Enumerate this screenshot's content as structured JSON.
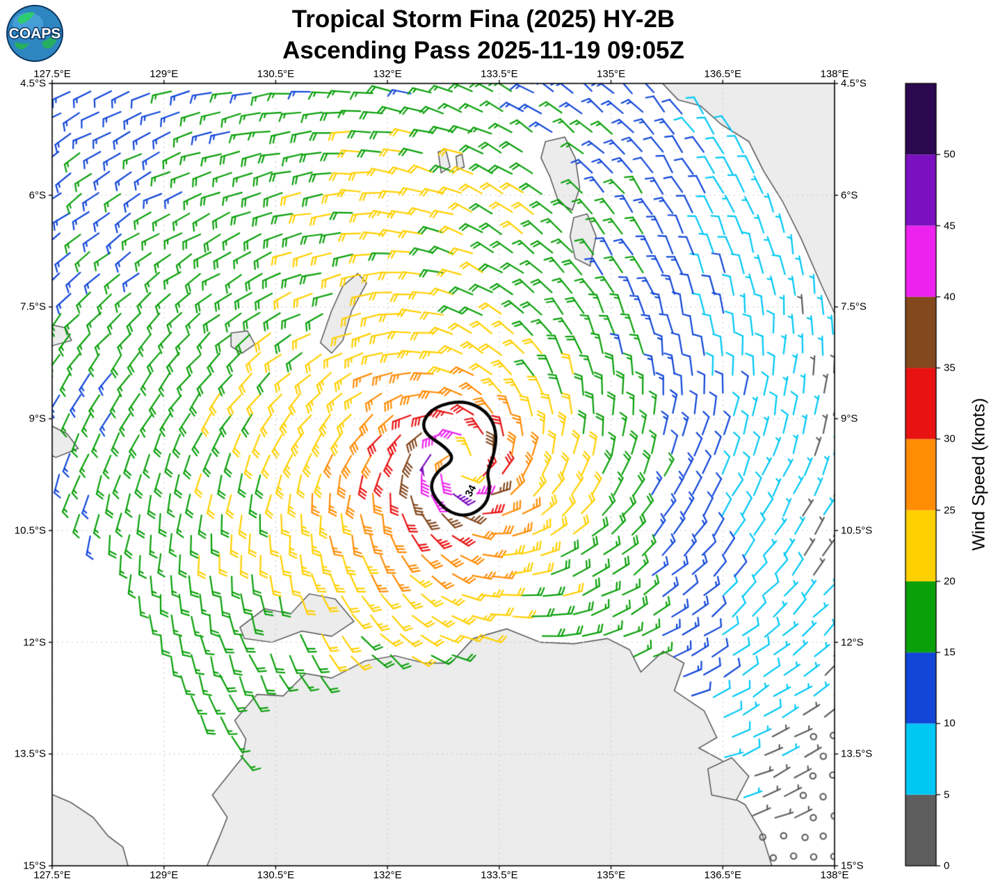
{
  "header": {
    "title_line1": "Tropical Storm Fina (2025) HY-2B",
    "title_line2": "Ascending Pass 2025-11-19 09:05Z",
    "logo_text": "COAPS"
  },
  "chart_data": {
    "type": "wind-barb-map",
    "storm_name": "Fina",
    "storm_year": "2025",
    "satellite": "HY-2B",
    "pass_type": "Ascending",
    "pass_time": "2025-11-19 09:05Z",
    "projection": {
      "lon_min": 127.5,
      "lon_max": 138.0,
      "lat_min": -15.0,
      "lat_max": -4.5
    },
    "x_tick_values": [
      127.5,
      129,
      130.5,
      132,
      133.5,
      135,
      136.5,
      138
    ],
    "x_tick_labels": [
      "127.5°E",
      "129°E",
      "130.5°E",
      "132°E",
      "133.5°E",
      "135°E",
      "136.5°E",
      "138°E"
    ],
    "y_tick_values": [
      -4.5,
      -6,
      -7.5,
      -9,
      -10.5,
      -12,
      -13.5,
      -15
    ],
    "y_tick_labels": [
      "4.5°S",
      "6°S",
      "7.5°S",
      "9°S",
      "10.5°S",
      "12°S",
      "13.5°S",
      "15°S"
    ],
    "colorbar": {
      "label": "Wind Speed (knots)",
      "min": 0,
      "max": 55,
      "tick_values": [
        0,
        5,
        10,
        15,
        20,
        25,
        30,
        35,
        40,
        45,
        50
      ],
      "segments": [
        {
          "from": 0,
          "to": 5,
          "color": "#5e5e5e"
        },
        {
          "from": 5,
          "to": 10,
          "color": "#00c8f5"
        },
        {
          "from": 10,
          "to": 15,
          "color": "#1146d8"
        },
        {
          "from": 15,
          "to": 20,
          "color": "#0aa00a"
        },
        {
          "from": 20,
          "to": 25,
          "color": "#ffd000"
        },
        {
          "from": 25,
          "to": 30,
          "color": "#ff8c05"
        },
        {
          "from": 30,
          "to": 35,
          "color": "#e81212"
        },
        {
          "from": 35,
          "to": 40,
          "color": "#84481e"
        },
        {
          "from": 40,
          "to": 45,
          "color": "#ee22ee"
        },
        {
          "from": 45,
          "to": 50,
          "color": "#7a10c0"
        },
        {
          "from": 50,
          "to": 55,
          "color": "#2c0850"
        }
      ]
    },
    "barb_key": {
      "half_kt": 5,
      "full_kt": 10,
      "pennant_kt": 50,
      "calm_threshold_kt": 2.5
    },
    "wind_field": {
      "storm": {
        "center_lon": 133.0,
        "center_lat": -9.6,
        "max_wind_kt": 44,
        "radius_max_wind_deg": 0.4,
        "decay_exponent": 0.45,
        "inflow_angle_deg": 20,
        "rotation": "clockwise",
        "asymmetry_amp": 0.15,
        "asymmetry_dir_deg": 200
      },
      "north_band": {
        "amp_kt": 6,
        "lat": -5.8,
        "lat_sigma": 1.3,
        "lon": 132.3,
        "lon_sigma": 2.5
      },
      "east_decay": {
        "start_lon": 135.3,
        "rate": 0.22,
        "floor": 0.3
      },
      "se_calm": {
        "lon0": 135.3,
        "lon_w": 2.2,
        "lat0": -12.3,
        "lat_w": 2.4,
        "amp": 0.85
      },
      "grid_spacing_deg": 0.27,
      "swath_left_edge": {
        "lat_start": -9.9,
        "lon0": 127.6,
        "slope": 0.606
      },
      "speed_jitter_kt": 1.6
    },
    "contour_34kt": {
      "label": "34",
      "color": "#000000",
      "label_lon": 133.12,
      "label_lat": -9.97,
      "label_rotation_deg": -62,
      "points": [
        [
          132.63,
          -8.84
        ],
        [
          133.01,
          -8.75
        ],
        [
          133.33,
          -8.89
        ],
        [
          133.47,
          -9.17
        ],
        [
          133.43,
          -9.49
        ],
        [
          133.33,
          -9.73
        ],
        [
          133.38,
          -9.91
        ],
        [
          133.33,
          -10.15
        ],
        [
          133.1,
          -10.31
        ],
        [
          132.85,
          -10.27
        ],
        [
          132.66,
          -10.1
        ],
        [
          132.57,
          -9.91
        ],
        [
          132.66,
          -9.71
        ],
        [
          132.9,
          -9.55
        ],
        [
          132.78,
          -9.38
        ],
        [
          132.51,
          -9.21
        ],
        [
          132.47,
          -9.03
        ]
      ]
    }
  },
  "map": {
    "land_fill": "#ececec",
    "land_edge": "#4d4d4d",
    "grid_color": "#c9c9c9",
    "border_color": "#000000",
    "land_polygons": {
      "australia": [
        [
          127.4,
          -14.0
        ],
        [
          127.75,
          -14.15
        ],
        [
          128.05,
          -14.35
        ],
        [
          128.25,
          -14.6
        ],
        [
          128.45,
          -14.75
        ],
        [
          128.6,
          -15.3
        ],
        [
          129.45,
          -15.3
        ],
        [
          129.75,
          -14.6
        ],
        [
          129.85,
          -14.35
        ],
        [
          129.65,
          -14.05
        ],
        [
          130.05,
          -13.55
        ],
        [
          130.1,
          -13.3
        ],
        [
          129.95,
          -13.05
        ],
        [
          130.25,
          -12.7
        ],
        [
          130.6,
          -12.72
        ],
        [
          130.9,
          -12.42
        ],
        [
          131.25,
          -12.48
        ],
        [
          131.7,
          -12.25
        ],
        [
          132.1,
          -12.18
        ],
        [
          132.5,
          -12.28
        ],
        [
          132.85,
          -12.28
        ],
        [
          133.15,
          -11.95
        ],
        [
          133.6,
          -11.82
        ],
        [
          134.05,
          -12.0
        ],
        [
          134.5,
          -12.02
        ],
        [
          134.95,
          -11.95
        ],
        [
          135.25,
          -12.1
        ],
        [
          135.4,
          -12.4
        ],
        [
          135.7,
          -12.12
        ],
        [
          135.98,
          -12.28
        ],
        [
          135.85,
          -12.65
        ],
        [
          136.25,
          -12.92
        ],
        [
          136.42,
          -13.28
        ],
        [
          136.18,
          -13.42
        ],
        [
          136.55,
          -13.62
        ],
        [
          136.48,
          -14.0
        ],
        [
          136.8,
          -14.18
        ],
        [
          137.02,
          -14.55
        ],
        [
          137.25,
          -15.3
        ],
        [
          127.4,
          -15.3
        ]
      ],
      "melville": [
        [
          130.02,
          -11.8
        ],
        [
          130.35,
          -11.55
        ],
        [
          130.7,
          -11.62
        ],
        [
          130.95,
          -11.35
        ],
        [
          131.3,
          -11.42
        ],
        [
          131.55,
          -11.72
        ],
        [
          131.25,
          -11.92
        ],
        [
          130.85,
          -11.85
        ],
        [
          130.45,
          -12.0
        ],
        [
          130.08,
          -11.95
        ]
      ],
      "groote": [
        [
          136.3,
          -13.7
        ],
        [
          136.62,
          -13.55
        ],
        [
          136.85,
          -13.8
        ],
        [
          136.68,
          -14.12
        ],
        [
          136.35,
          -14.05
        ]
      ],
      "timor_tip": [
        [
          127.4,
          -9.05
        ],
        [
          127.7,
          -9.2
        ],
        [
          127.85,
          -9.4
        ],
        [
          127.55,
          -9.52
        ],
        [
          127.4,
          -9.45
        ]
      ],
      "wetar_tip": [
        [
          127.4,
          -7.72
        ],
        [
          127.68,
          -7.78
        ],
        [
          127.76,
          -7.95
        ],
        [
          127.5,
          -8.02
        ],
        [
          127.4,
          -7.95
        ]
      ],
      "babar": [
        [
          129.9,
          -7.85
        ],
        [
          130.12,
          -7.82
        ],
        [
          130.22,
          -8.0
        ],
        [
          130.05,
          -8.12
        ],
        [
          129.9,
          -8.03
        ]
      ],
      "tanimbar": [
        [
          131.1,
          -7.98
        ],
        [
          131.25,
          -7.55
        ],
        [
          131.4,
          -7.22
        ],
        [
          131.6,
          -7.05
        ],
        [
          131.72,
          -7.18
        ],
        [
          131.52,
          -7.55
        ],
        [
          131.4,
          -7.95
        ],
        [
          131.25,
          -8.12
        ]
      ],
      "kai_a": [
        [
          132.68,
          -5.42
        ],
        [
          132.78,
          -5.38
        ],
        [
          132.84,
          -5.62
        ],
        [
          132.72,
          -5.7
        ]
      ],
      "kai_b": [
        [
          132.92,
          -5.48
        ],
        [
          133.0,
          -5.45
        ],
        [
          133.03,
          -5.62
        ],
        [
          132.94,
          -5.66
        ]
      ],
      "aru_n": [
        [
          134.12,
          -5.28
        ],
        [
          134.38,
          -5.22
        ],
        [
          134.52,
          -5.5
        ],
        [
          134.58,
          -5.9
        ],
        [
          134.48,
          -6.2
        ],
        [
          134.3,
          -6.1
        ],
        [
          134.18,
          -5.75
        ],
        [
          134.06,
          -5.5
        ]
      ],
      "aru_s": [
        [
          134.5,
          -6.3
        ],
        [
          134.68,
          -6.25
        ],
        [
          134.8,
          -6.55
        ],
        [
          134.72,
          -6.95
        ],
        [
          134.52,
          -6.85
        ],
        [
          134.45,
          -6.55
        ]
      ],
      "new_guinea": [
        [
          135.55,
          -4.35
        ],
        [
          135.9,
          -4.72
        ],
        [
          136.2,
          -4.8
        ],
        [
          136.48,
          -5.05
        ],
        [
          136.85,
          -5.28
        ],
        [
          137.05,
          -5.68
        ],
        [
          137.3,
          -6.08
        ],
        [
          137.55,
          -6.58
        ],
        [
          137.82,
          -7.2
        ],
        [
          138.1,
          -7.8
        ],
        [
          138.3,
          -8.1
        ],
        [
          138.3,
          -4.35
        ]
      ]
    }
  }
}
